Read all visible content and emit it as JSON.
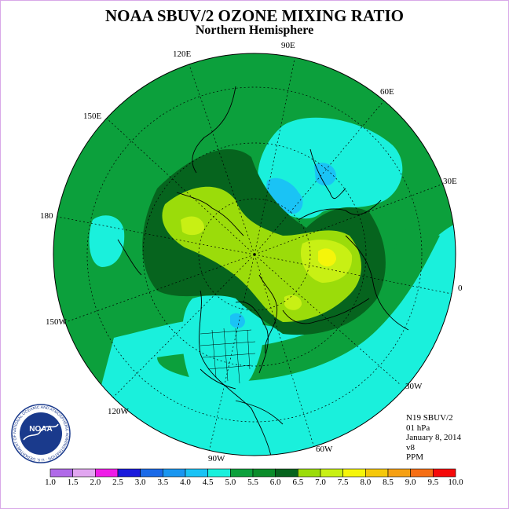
{
  "header": {
    "title": "NOAA SBUV/2 OZONE MIXING RATIO",
    "subtitle": "Northern Hemisphere"
  },
  "longitude_labels": {
    "lon_90E": "90E",
    "lon_60E": "60E",
    "lon_30E": "30E",
    "lon_0": "0",
    "lon_30W": "30W",
    "lon_60W": "60W",
    "lon_90W": "90W",
    "lon_120W": "120W",
    "lon_150W": "150W",
    "lon_180": "180",
    "lon_150E": "150E",
    "lon_120E": "120E"
  },
  "info": {
    "satellite": "N19 SBUV/2",
    "level": "01 hPa",
    "date": "January 8, 2014",
    "version": "v8",
    "units": "PPM"
  },
  "logo": {
    "text": "NOAA",
    "ring_text": "NATIONAL OCEANIC AND ATMOSPHERIC ADMINISTRATION · U.S. DEPARTMENT OF COMMERCE"
  },
  "colorbar": {
    "labels": [
      "1.0",
      "1.5",
      "2.0",
      "2.5",
      "3.0",
      "3.5",
      "4.0",
      "4.5",
      "5.0",
      "5.5",
      "6.0",
      "6.5",
      "7.0",
      "7.5",
      "8.0",
      "8.5",
      "9.0",
      "9.5",
      "10.0"
    ],
    "colors": [
      "#b06ae8",
      "#e1a6f0",
      "#ef1ce8",
      "#1a1adc",
      "#1a6ae8",
      "#1a96f0",
      "#1ac3f5",
      "#1af0dc",
      "#0ca03c",
      "#0a8c2a",
      "#06641e",
      "#9bdc0a",
      "#c8f014",
      "#f5f50a",
      "#f5c80a",
      "#f5a014",
      "#f56e14",
      "#f50a0a",
      "#8c5a3c"
    ]
  }
}
